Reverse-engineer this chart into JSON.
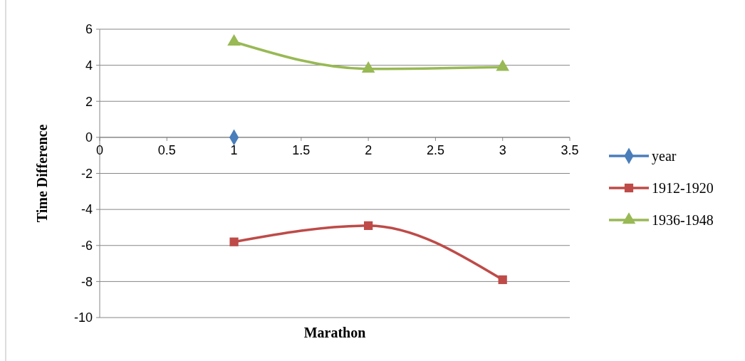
{
  "chart_data": {
    "type": "line",
    "xlabel": "Marathon",
    "ylabel": "Time Difference",
    "xlim": [
      0,
      3.5
    ],
    "xticks": [
      0,
      0.5,
      1,
      1.5,
      2,
      2.5,
      3,
      3.5
    ],
    "ylim": [
      -10,
      6
    ],
    "yticks": [
      -10,
      -8,
      -6,
      -4,
      -2,
      0,
      2,
      4,
      6
    ],
    "grid": "y",
    "legend": "right",
    "series": [
      {
        "name": "year",
        "color": "#4a7ebb",
        "marker": "diamond",
        "x": [
          1
        ],
        "values": [
          0
        ]
      },
      {
        "name": "1912-1920",
        "color": "#be4b48",
        "marker": "square",
        "x": [
          1,
          2,
          3
        ],
        "values": [
          -5.8,
          -4.9,
          -7.9
        ]
      },
      {
        "name": "1936-1948",
        "color": "#98b954",
        "marker": "triangle",
        "x": [
          1,
          2,
          3
        ],
        "values": [
          5.3,
          3.8,
          3.9
        ]
      }
    ]
  }
}
